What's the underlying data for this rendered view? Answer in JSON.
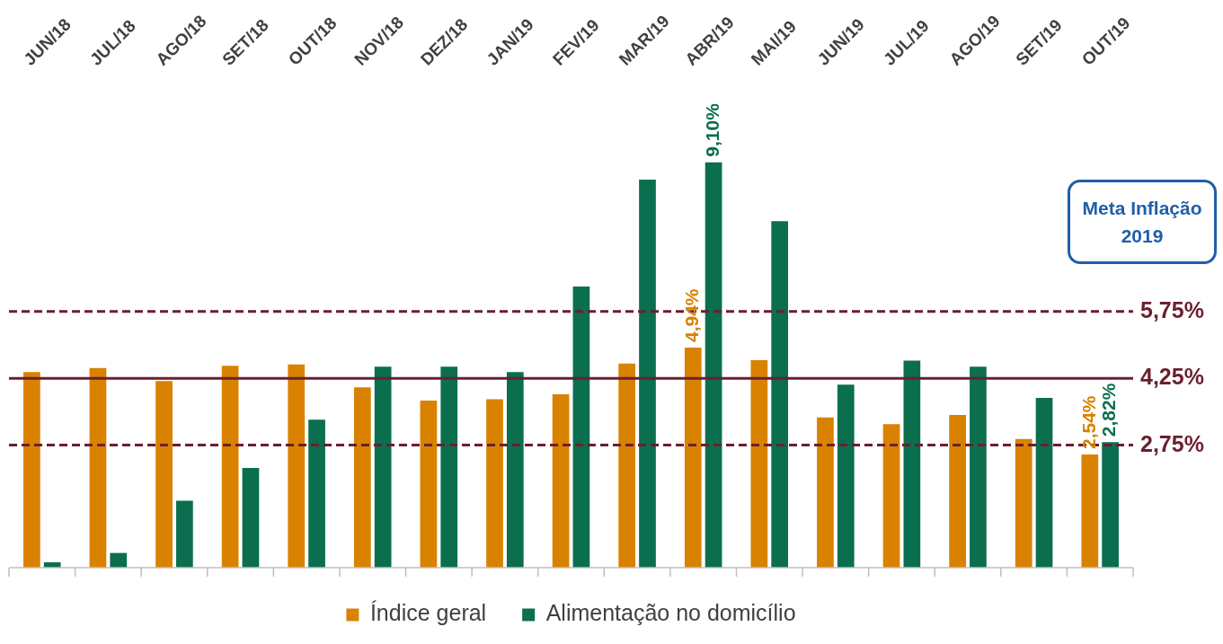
{
  "chart_data": {
    "type": "bar",
    "categories": [
      "JUN/18",
      "JUL/18",
      "AGO/18",
      "SET/18",
      "OUT/18",
      "NOV/18",
      "DEZ/18",
      "JAN/19",
      "FEV/19",
      "MAR/19",
      "ABR/19",
      "MAI/19",
      "JUN/19",
      "JUL/19",
      "AGO/19",
      "SET/19",
      "OUT/19"
    ],
    "series": [
      {
        "name": "Índice geral",
        "color": "#d98200",
        "values": [
          4.39,
          4.48,
          4.19,
          4.53,
          4.56,
          4.05,
          3.75,
          3.78,
          3.89,
          4.58,
          4.94,
          4.66,
          3.37,
          3.22,
          3.43,
          2.89,
          2.54
        ],
        "value_labels": [
          null,
          null,
          null,
          null,
          null,
          null,
          null,
          null,
          null,
          null,
          "4,94%",
          null,
          null,
          null,
          null,
          null,
          "2,54%"
        ]
      },
      {
        "name": "Alimentação no domicílio",
        "color": "#0b6e4f",
        "values": [
          0.12,
          0.33,
          1.5,
          2.24,
          3.32,
          4.51,
          4.51,
          4.39,
          6.31,
          8.71,
          9.1,
          7.78,
          4.11,
          4.65,
          4.51,
          3.81,
          2.82
        ],
        "value_labels": [
          null,
          null,
          null,
          null,
          null,
          null,
          null,
          null,
          null,
          null,
          "9,10%",
          null,
          null,
          null,
          null,
          null,
          "2,82%"
        ]
      }
    ],
    "ref_lines": [
      {
        "axis": "y",
        "value": 5.75,
        "label": "5,75%",
        "color": "#6b1f2e",
        "line_style": "dashed"
      },
      {
        "axis": "y",
        "value": 4.25,
        "label": "4,25%",
        "color": "#6b1f2e",
        "line_style": "solid"
      },
      {
        "axis": "y",
        "value": 2.75,
        "label": "2,75%",
        "color": "#6b1f2e",
        "line_style": "dashed"
      }
    ],
    "annotations": [
      "Meta Inflação 2019"
    ],
    "grid": false,
    "legend": "bottom"
  }
}
